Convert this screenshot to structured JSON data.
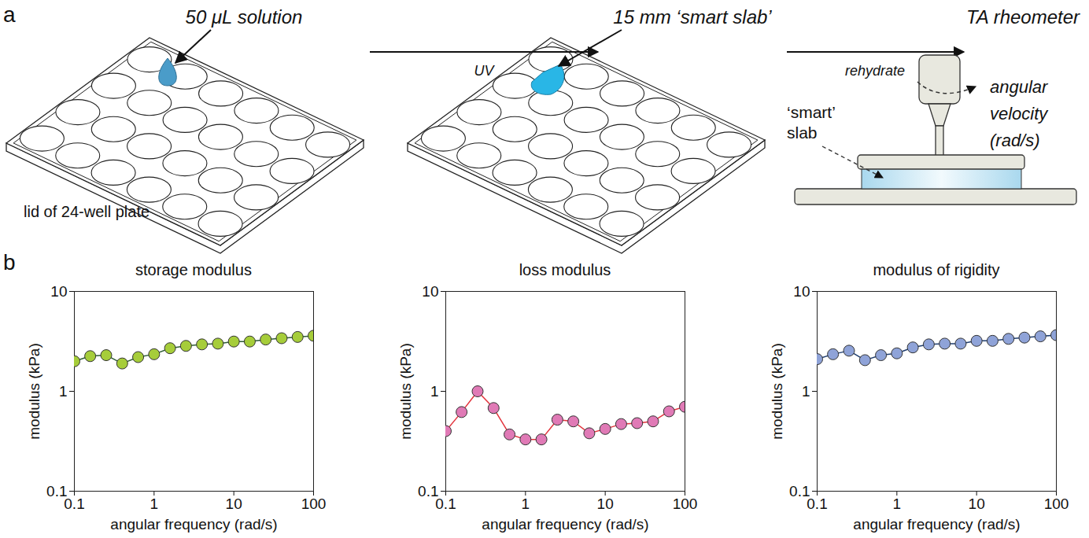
{
  "panel_labels": [
    "a",
    "b"
  ],
  "diagram": {
    "steps": [
      "50 μL solution",
      "15 mm ‘smart slab’",
      "TA rheometer"
    ],
    "arrows": [
      "UV",
      "rehydrate"
    ],
    "plate_label": "lid of 24-well plate",
    "rheometer_labels": [
      "‘smart’ slab",
      "angular velocity (rad/s)"
    ]
  },
  "chart_data": [
    {
      "type": "line",
      "title": "storage modulus",
      "x": [
        0.1,
        0.158,
        0.251,
        0.398,
        0.631,
        1,
        1.585,
        2.512,
        3.981,
        6.31,
        10,
        15.85,
        25.12,
        39.81,
        63.1,
        100
      ],
      "values": [
        2.0,
        2.25,
        2.3,
        1.9,
        2.2,
        2.35,
        2.7,
        2.85,
        2.95,
        3.0,
        3.15,
        3.15,
        3.3,
        3.4,
        3.5,
        3.6
      ],
      "color": "#a6cd3a",
      "marker": "circle",
      "xlabel": "angular frequency (rad/s)",
      "ylabel": "modulus (kPa)",
      "xlim": [
        0.1,
        100
      ],
      "ylim": [
        0.1,
        10
      ],
      "xticks": [
        0.1,
        1,
        10,
        100
      ],
      "yticks": [
        0.1,
        1,
        10
      ],
      "log": true,
      "grid": false
    },
    {
      "type": "line",
      "title": "loss modulus",
      "x": [
        0.1,
        0.158,
        0.251,
        0.398,
        0.631,
        1,
        1.585,
        2.512,
        3.981,
        6.31,
        10,
        15.85,
        25.12,
        39.81,
        63.1,
        100
      ],
      "values": [
        0.4,
        0.62,
        1.0,
        0.68,
        0.37,
        0.33,
        0.33,
        0.52,
        0.5,
        0.38,
        0.42,
        0.47,
        0.48,
        0.5,
        0.63,
        0.7
      ],
      "color": "#e07ab6",
      "marker": "circle",
      "xlabel": "angular frequency (rad/s)",
      "ylabel": "modulus (kPa)",
      "xlim": [
        0.1,
        100
      ],
      "ylim": [
        0.1,
        10
      ],
      "xticks": [
        0.1,
        1,
        10,
        100
      ],
      "yticks": [
        0.1,
        1,
        10
      ],
      "log": true,
      "grid": false
    },
    {
      "type": "line",
      "title": "modulus of rigidity",
      "x": [
        0.1,
        0.158,
        0.251,
        0.398,
        0.631,
        1,
        1.585,
        2.512,
        3.981,
        6.31,
        10,
        15.85,
        25.12,
        39.81,
        63.1,
        100
      ],
      "values": [
        2.1,
        2.35,
        2.55,
        2.05,
        2.3,
        2.4,
        2.75,
        2.95,
        3.0,
        3.0,
        3.2,
        3.2,
        3.35,
        3.45,
        3.55,
        3.65
      ],
      "color": "#8fa3d8",
      "marker": "circle",
      "xlabel": "angular frequency (rad/s)",
      "ylabel": "modulus (kPa)",
      "xlim": [
        0.1,
        100
      ],
      "ylim": [
        0.1,
        10
      ],
      "xticks": [
        0.1,
        1,
        10,
        100
      ],
      "yticks": [
        0.1,
        1,
        10
      ],
      "log": true,
      "grid": false
    }
  ]
}
